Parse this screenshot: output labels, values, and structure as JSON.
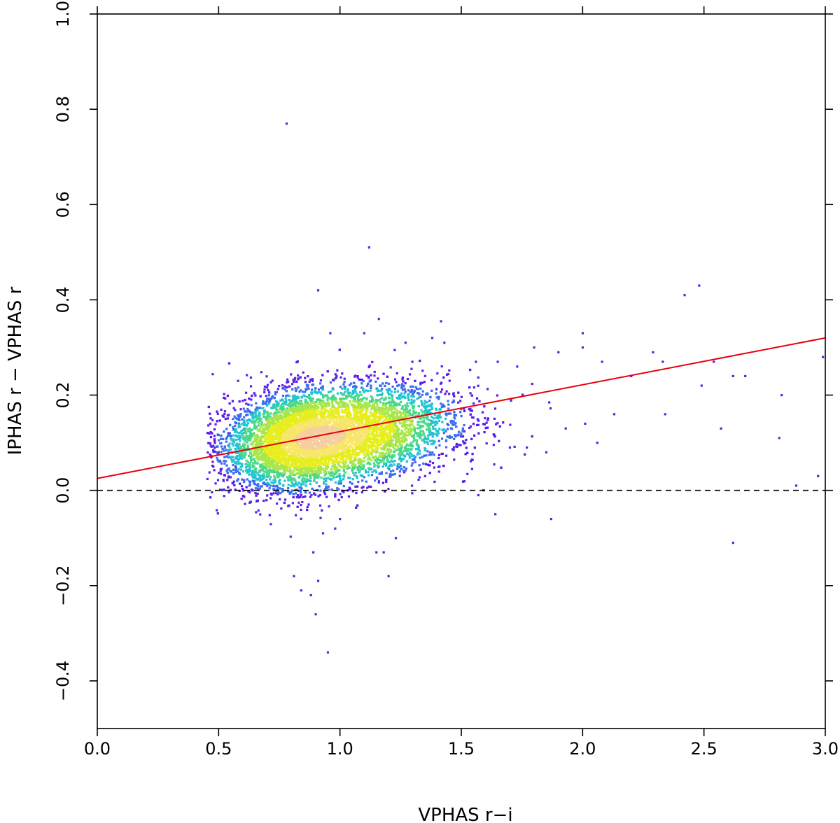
{
  "chart_data": {
    "type": "heatmap",
    "xlabel": "VPHAS r−i",
    "ylabel": "IPHAS r − VPHAS r",
    "xlim": [
      0.0,
      3.0
    ],
    "ylim": [
      -0.5,
      1.0
    ],
    "x_ticks": [
      "0.0",
      "0.5",
      "1.0",
      "1.5",
      "2.0",
      "2.5",
      "3.0"
    ],
    "x_tick_values": [
      0.0,
      0.5,
      1.0,
      1.5,
      2.0,
      2.5,
      3.0
    ],
    "y_ticks": [
      "−0.4",
      "−0.2",
      "0.0",
      "0.2",
      "0.4",
      "0.6",
      "0.8",
      "1.0"
    ],
    "y_tick_values": [
      -0.4,
      -0.2,
      0.0,
      0.2,
      0.4,
      0.6,
      0.8,
      1.0
    ],
    "density_cluster": {
      "center": [
        0.9,
        0.11
      ],
      "x_spread": 0.18,
      "y_spread": 0.05,
      "colormap": [
        "#5a1fe8",
        "#3b6cf0",
        "#22c4d2",
        "#49d98a",
        "#a9e64a",
        "#e6ee1e",
        "#f7e66a",
        "#f6cfa0"
      ]
    },
    "scatter_points": [
      [
        0.78,
        0.77
      ],
      [
        1.12,
        0.51
      ],
      [
        0.91,
        0.42
      ],
      [
        1.16,
        0.36
      ],
      [
        0.58,
        0.23
      ],
      [
        0.96,
        0.33
      ],
      [
        1.1,
        0.33
      ],
      [
        1.27,
        0.31
      ],
      [
        1.38,
        0.32
      ],
      [
        1.43,
        0.31
      ],
      [
        1.56,
        0.27
      ],
      [
        1.65,
        0.27
      ],
      [
        1.73,
        0.26
      ],
      [
        1.8,
        0.3
      ],
      [
        1.9,
        0.29
      ],
      [
        2.0,
        0.33
      ],
      [
        2.0,
        0.3
      ],
      [
        2.08,
        0.27
      ],
      [
        2.2,
        0.24
      ],
      [
        2.29,
        0.29
      ],
      [
        2.33,
        0.27
      ],
      [
        2.42,
        0.41
      ],
      [
        2.48,
        0.43
      ],
      [
        2.49,
        0.22
      ],
      [
        2.54,
        0.27
      ],
      [
        2.62,
        0.24
      ],
      [
        2.67,
        0.24
      ],
      [
        2.82,
        0.2
      ],
      [
        2.99,
        0.28
      ],
      [
        2.81,
        0.11
      ],
      [
        2.88,
        0.01
      ],
      [
        2.97,
        0.03
      ],
      [
        2.62,
        -0.11
      ],
      [
        2.57,
        0.13
      ],
      [
        2.34,
        0.16
      ],
      [
        2.13,
        0.16
      ],
      [
        2.06,
        0.1
      ],
      [
        2.01,
        0.14
      ],
      [
        1.93,
        0.13
      ],
      [
        1.87,
        -0.06
      ],
      [
        1.85,
        0.08
      ],
      [
        1.77,
        0.09
      ],
      [
        1.7,
        0.09
      ],
      [
        1.64,
        -0.05
      ],
      [
        1.57,
        -0.01
      ],
      [
        1.41,
        0.05
      ],
      [
        1.23,
        -0.1
      ],
      [
        1.2,
        -0.18
      ],
      [
        1.18,
        -0.13
      ],
      [
        1.15,
        -0.13
      ],
      [
        0.95,
        -0.34
      ],
      [
        0.9,
        -0.26
      ],
      [
        0.88,
        -0.22
      ],
      [
        0.91,
        -0.19
      ],
      [
        0.84,
        -0.21
      ],
      [
        0.81,
        -0.18
      ],
      [
        0.89,
        -0.13
      ],
      [
        0.93,
        -0.09
      ],
      [
        0.98,
        -0.08
      ],
      [
        1.0,
        -0.06
      ],
      [
        0.5,
        0.08
      ],
      [
        0.52,
        0.02
      ],
      [
        0.54,
        0.12
      ],
      [
        0.57,
        0.05
      ]
    ],
    "fit_line": {
      "color": "#e8000b",
      "x": [
        0.0,
        3.0
      ],
      "y": [
        0.025,
        0.32
      ]
    },
    "reference_line": {
      "y": 0.0,
      "style": "dashed",
      "color": "#000000"
    },
    "grid": false
  }
}
